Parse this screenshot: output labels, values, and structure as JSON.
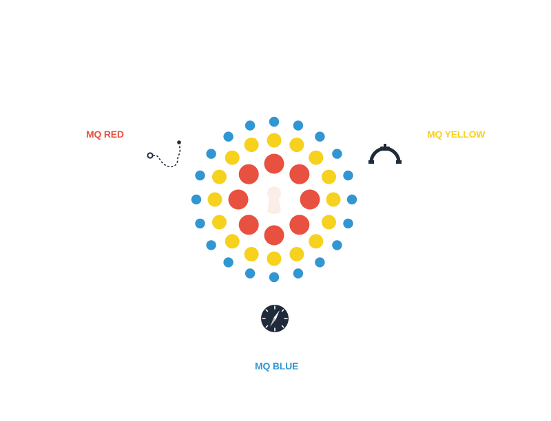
{
  "labels": {
    "red": "MQ RED",
    "yellow": "MQ YELLOW",
    "blue": "MQ BLUE"
  },
  "colors": {
    "red": "#e8503f",
    "yellow": "#f6d11e",
    "blue": "#3196d2",
    "dark": "#1f2a3a",
    "center": "#fbeee9"
  },
  "icons": {
    "red": "dotted-path-icon",
    "yellow": "magnet-icon",
    "blue": "compass-icon",
    "center": "keyhole-icon"
  },
  "rings": [
    {
      "color": "red",
      "count": 8
    },
    {
      "color": "yellow",
      "count": 16
    },
    {
      "color": "blue",
      "count": 20
    }
  ]
}
